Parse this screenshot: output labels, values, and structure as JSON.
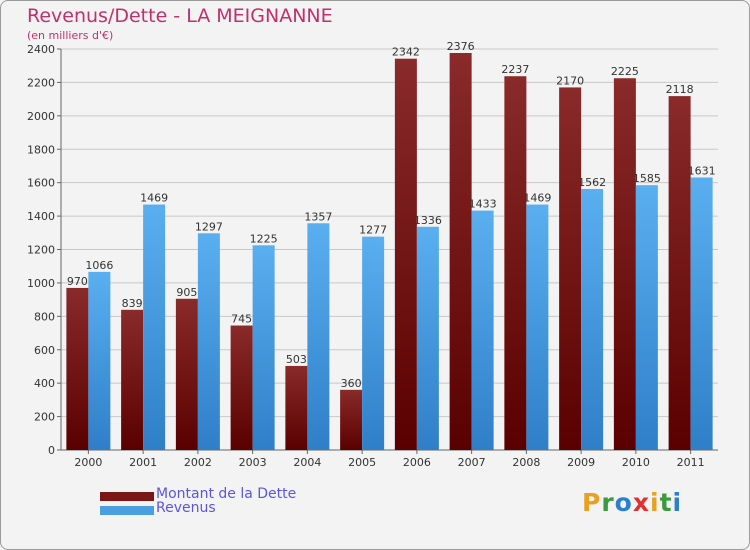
{
  "header": {
    "title": "Revenus/Dette - LA MEIGNANNE",
    "subtitle": "(en milliers d'€)"
  },
  "legend": {
    "items": [
      {
        "label": "Montant de la Dette",
        "color": "#7a1616"
      },
      {
        "label": "Revenus",
        "color": "#4a9fe0"
      }
    ]
  },
  "logo": {
    "letters": [
      "P",
      "r",
      "o",
      "x",
      "i",
      "t",
      "i"
    ],
    "colors": [
      "#e8a020",
      "#3c9a3c",
      "#2b7fd0",
      "#e03030",
      "#e8a020",
      "#3c9a3c",
      "#2b7fd0"
    ]
  },
  "chart_data": {
    "type": "bar",
    "categories": [
      "2000",
      "2001",
      "2002",
      "2003",
      "2004",
      "2005",
      "2006",
      "2007",
      "2008",
      "2009",
      "2010",
      "2011"
    ],
    "series": [
      {
        "name": "Montant de la Dette",
        "color": "#7a1616",
        "values": [
          970,
          839,
          905,
          745,
          503,
          360,
          2342,
          2376,
          2237,
          2170,
          2225,
          2118
        ]
      },
      {
        "name": "Revenus",
        "color": "#4a9fe0",
        "values": [
          1066,
          1469,
          1297,
          1225,
          1357,
          1277,
          1336,
          1433,
          1469,
          1562,
          1585,
          1631
        ]
      }
    ],
    "title": "Revenus/Dette - LA MEIGNANNE",
    "ylabel": "(en milliers d'€)",
    "ylim": [
      0,
      2400
    ],
    "yticks": [
      0,
      200,
      400,
      600,
      800,
      1000,
      1200,
      1400,
      1600,
      1800,
      2000,
      2200,
      2400
    ],
    "grid": true,
    "legend_position": "bottom-left"
  }
}
